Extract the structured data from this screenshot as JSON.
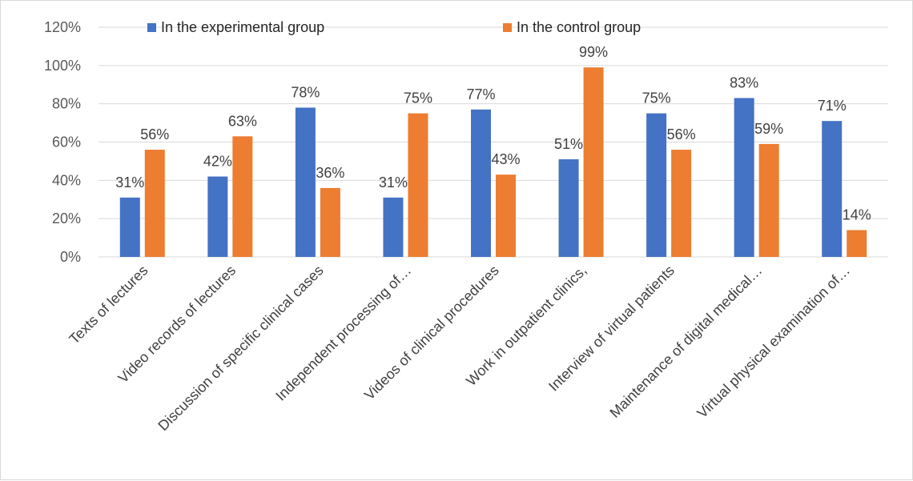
{
  "chart_data": {
    "type": "bar",
    "categories": [
      "Texts of lectures",
      "Video records of lectures",
      "Discussion of specific clinical cases",
      "Independent processing of…",
      "Videos of clinical procedures",
      "Work in outpatient clinics,",
      "Interview of virtual patients",
      "Maintenance of digital medical…",
      "Virtual physical examination of…"
    ],
    "series": [
      {
        "name": "In the experimental group",
        "color": "#4472C4",
        "values": [
          31,
          42,
          78,
          31,
          77,
          51,
          75,
          83,
          71
        ]
      },
      {
        "name": "In the control group",
        "color": "#ED7D31",
        "values": [
          56,
          63,
          36,
          75,
          43,
          99,
          56,
          59,
          14
        ]
      }
    ],
    "data_label_suffix": "%",
    "y_ticks": [
      "0%",
      "20%",
      "40%",
      "60%",
      "80%",
      "100%",
      "120%"
    ],
    "ylim": [
      0,
      120
    ],
    "y_step": 20,
    "grid": true,
    "legend_position": "top",
    "title": "",
    "xlabel": "",
    "ylabel": ""
  }
}
